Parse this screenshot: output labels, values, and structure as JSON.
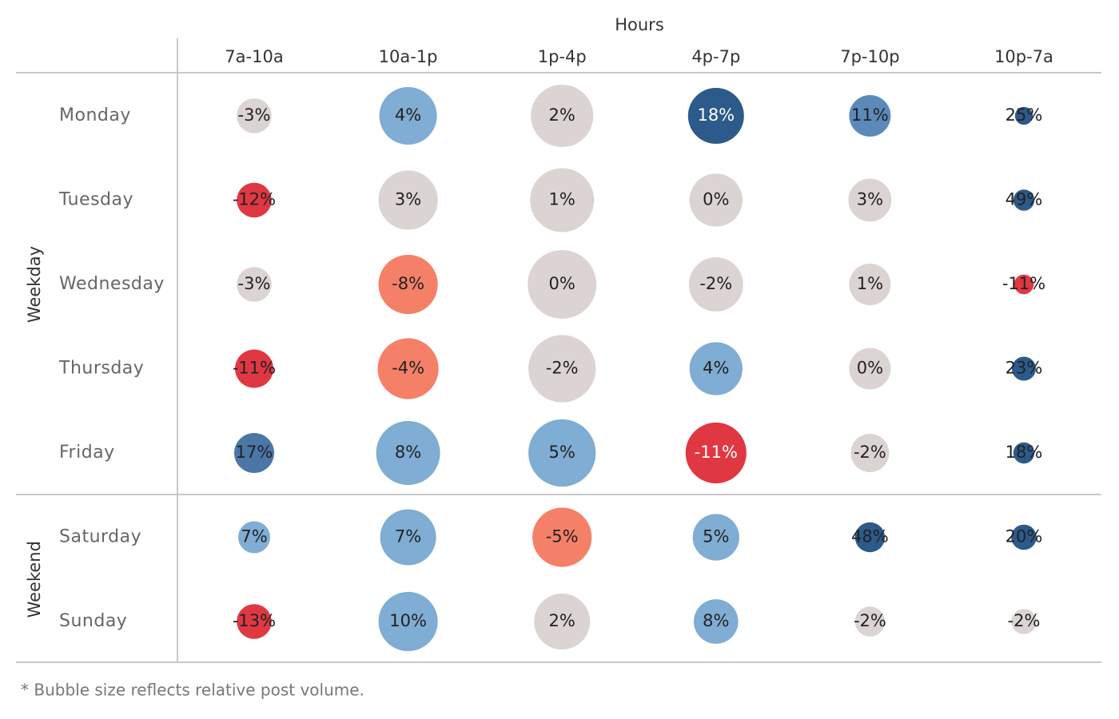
{
  "chart_data": {
    "type": "bubble-table",
    "x_title": "Hours",
    "categories": [
      "7a-10a",
      "10a-1p",
      "1p-4p",
      "4p-7p",
      "7p-10p",
      "10p-7a"
    ],
    "groups": [
      {
        "name": "Weekday",
        "series": [
          {
            "name": "Monday",
            "values": [
              -3,
              4,
              2,
              18,
              11,
              25
            ],
            "value_labels": [
              "-3%",
              "4%",
              "2%",
              "18%",
              "11%",
              "25%"
            ],
            "sizes": [
              19,
              52,
              61,
              49,
              27,
              5
            ],
            "colors": [
              "#dcd3d3",
              "#7fadd3",
              "#dcd3d3",
              "#2c5a8a",
              "#5b89ba",
              "#2c5a8a"
            ]
          },
          {
            "name": "Tuesday",
            "values": [
              -12,
              3,
              1,
              0,
              3,
              49
            ],
            "value_labels": [
              "-12%",
              "3%",
              "1%",
              "0%",
              "3%",
              "49%"
            ],
            "sizes": [
              19,
              55,
              64,
              44,
              29,
              7
            ],
            "colors": [
              "#e03842",
              "#dcd3d3",
              "#dcd3d3",
              "#dcd3d3",
              "#dcd3d3",
              "#2c5a8a"
            ]
          },
          {
            "name": "Wednesday",
            "values": [
              -3,
              -8,
              0,
              -2,
              1,
              -11
            ],
            "value_labels": [
              "-3%",
              "-8%",
              "0%",
              "-2%",
              "1%",
              "-11%"
            ],
            "sizes": [
              19,
              55,
              74,
              46,
              27,
              6
            ],
            "colors": [
              "#dcd3d3",
              "#f58068",
              "#dcd3d3",
              "#dcd3d3",
              "#dcd3d3",
              "#e03842"
            ]
          },
          {
            "name": "Thursday",
            "values": [
              -11,
              -4,
              -2,
              4,
              0,
              23
            ],
            "value_labels": [
              "-11%",
              "-4%",
              "-2%",
              "4%",
              "0%",
              "23%"
            ],
            "sizes": [
              23,
              58,
              71,
              44,
              27,
              9
            ],
            "colors": [
              "#e03842",
              "#f58068",
              "#dcd3d3",
              "#7fadd3",
              "#dcd3d3",
              "#2c5a8a"
            ]
          },
          {
            "name": "Friday",
            "values": [
              17,
              8,
              5,
              -11,
              -2,
              18
            ],
            "value_labels": [
              "17%",
              "8%",
              "5%",
              "-11%",
              "-2%",
              "18%"
            ],
            "sizes": [
              25,
              64,
              71,
              58,
              23,
              7
            ],
            "colors": [
              "#4a76a8",
              "#7fadd3",
              "#7fadd3",
              "#e03842",
              "#dcd3d3",
              "#2c5a8a"
            ]
          }
        ]
      },
      {
        "name": "Weekend",
        "series": [
          {
            "name": "Saturday",
            "values": [
              7,
              7,
              -5,
              5,
              48,
              20
            ],
            "value_labels": [
              "7%",
              "7%",
              "-5%",
              "5%",
              "48%",
              "20%"
            ],
            "sizes": [
              16,
              49,
              55,
              34,
              14,
              10
            ],
            "colors": [
              "#7fadd3",
              "#7fadd3",
              "#f58068",
              "#7fadd3",
              "#2c5a8a",
              "#2c5a8a"
            ]
          },
          {
            "name": "Sunday",
            "values": [
              -13,
              10,
              2,
              8,
              -2,
              -2
            ],
            "value_labels": [
              "-13%",
              "10%",
              "2%",
              "8%",
              "-2%",
              "-2%"
            ],
            "sizes": [
              19,
              55,
              49,
              31,
              14,
              10
            ],
            "colors": [
              "#e03842",
              "#7fadd3",
              "#dcd3d3",
              "#7fadd3",
              "#dcd3d3",
              "#dcd3d3"
            ]
          }
        ]
      }
    ],
    "note": "* Bubble size reflects relative post volume."
  }
}
